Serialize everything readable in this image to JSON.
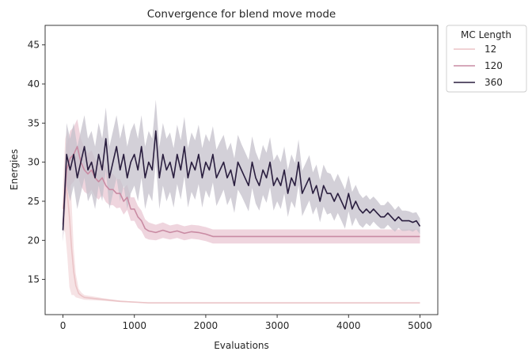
{
  "chart_data": {
    "type": "line",
    "title": "Convergence for blend move mode",
    "xlabel": "Evaluations",
    "ylabel": "Energies",
    "xlim": [
      -250,
      5250
    ],
    "ylim": [
      10.5,
      47.5
    ],
    "xticks": [
      0,
      1000,
      2000,
      3000,
      4000,
      5000
    ],
    "yticks": [
      15,
      20,
      25,
      30,
      35,
      40,
      45
    ],
    "grid": false,
    "legend": {
      "title": "MC Length",
      "placement": "outside-top-right"
    },
    "series": [
      {
        "name": "12",
        "color": "#ebc4c7",
        "band_color": "#f3dadc",
        "x": [
          0,
          30,
          60,
          90,
          120,
          150,
          180,
          220,
          260,
          300,
          400,
          500,
          600,
          800,
          1000,
          1200,
          1500,
          2000,
          3000,
          4000,
          5000
        ],
        "y": [
          24,
          27,
          26,
          23,
          19,
          16,
          14.2,
          13.2,
          12.9,
          12.7,
          12.6,
          12.5,
          12.4,
          12.2,
          12.1,
          12.0,
          12.0,
          12.0,
          12.0,
          12.0,
          12.0
        ],
        "band": [
          2.5,
          6,
          8,
          9,
          6,
          3,
          1.5,
          0.6,
          0.4,
          0.3,
          0.25,
          0.2,
          0.15,
          0.1,
          0.05,
          0.05,
          0.05,
          0.05,
          0.05,
          0.05,
          0.05
        ]
      },
      {
        "name": "120",
        "color": "#c98ba3",
        "band_color": "#e9c7d3",
        "x": [
          0,
          50,
          100,
          150,
          200,
          250,
          300,
          350,
          400,
          450,
          500,
          550,
          600,
          650,
          700,
          750,
          800,
          850,
          900,
          950,
          1000,
          1050,
          1100,
          1150,
          1200,
          1300,
          1400,
          1500,
          1600,
          1700,
          1800,
          1900,
          2000,
          2100,
          2500,
          3000,
          4000,
          5000
        ],
        "y": [
          22,
          29,
          30.5,
          31,
          32,
          30,
          29,
          28.5,
          29,
          28,
          27.5,
          28,
          27,
          26.5,
          26.5,
          26,
          26,
          25,
          25.5,
          24,
          24,
          23,
          22.5,
          21.5,
          21.2,
          21.0,
          21.3,
          21.0,
          21.2,
          20.9,
          21.1,
          21.0,
          20.8,
          20.5,
          20.5,
          20.5,
          20.5,
          20.5
        ],
        "band": [
          2,
          3,
          3.5,
          3.5,
          3.5,
          3,
          2.8,
          2.6,
          2.5,
          2.4,
          2.3,
          2.2,
          2.1,
          2.0,
          2.0,
          1.9,
          1.8,
          1.7,
          1.6,
          1.5,
          1.5,
          1.4,
          1.3,
          1.2,
          1.1,
          1.0,
          1.0,
          0.9,
          0.9,
          0.9,
          0.9,
          0.9,
          0.9,
          0.9,
          0.9,
          0.9,
          0.9,
          0.9
        ]
      },
      {
        "name": "360",
        "color": "#2a1e3f",
        "band_color": "#c4c0cb",
        "x": [
          0,
          50,
          100,
          150,
          200,
          250,
          300,
          350,
          400,
          450,
          500,
          550,
          600,
          650,
          700,
          750,
          800,
          850,
          900,
          950,
          1000,
          1050,
          1100,
          1150,
          1200,
          1250,
          1300,
          1350,
          1400,
          1450,
          1500,
          1550,
          1600,
          1650,
          1700,
          1750,
          1800,
          1850,
          1900,
          1950,
          2000,
          2050,
          2100,
          2150,
          2200,
          2250,
          2300,
          2350,
          2400,
          2450,
          2500,
          2550,
          2600,
          2650,
          2700,
          2750,
          2800,
          2850,
          2900,
          2950,
          3000,
          3050,
          3100,
          3150,
          3200,
          3250,
          3300,
          3350,
          3400,
          3450,
          3500,
          3550,
          3600,
          3650,
          3700,
          3750,
          3800,
          3850,
          3900,
          3950,
          4000,
          4050,
          4100,
          4150,
          4200,
          4250,
          4300,
          4350,
          4400,
          4450,
          4500,
          4550,
          4600,
          4650,
          4700,
          4750,
          4800,
          4850,
          4900,
          4950,
          5000
        ],
        "y": [
          21.3,
          31,
          29,
          31,
          28,
          30,
          32,
          29,
          30,
          28,
          31,
          29,
          33,
          28,
          30,
          32,
          29,
          31,
          28,
          30,
          31,
          29,
          32,
          28,
          30,
          29,
          34,
          28,
          31,
          29,
          30,
          28,
          31,
          29,
          32,
          28,
          30,
          29,
          31,
          28,
          30,
          29,
          31,
          28,
          29,
          30,
          28,
          29,
          27,
          30,
          29,
          28,
          27,
          30,
          28,
          27,
          29,
          28,
          30,
          27,
          28,
          27,
          29,
          26,
          28,
          27,
          30,
          26,
          27,
          28,
          26,
          27,
          25,
          27,
          26,
          26,
          25,
          26,
          25,
          24,
          26,
          24,
          25,
          24,
          23.5,
          24,
          23.5,
          24,
          23.5,
          23,
          23,
          23.5,
          23,
          22.5,
          23,
          22.5,
          22.5,
          22.5,
          22.3,
          22.5,
          21.8
        ],
        "band": [
          1.5,
          4,
          4,
          4,
          4,
          4,
          4,
          4,
          4,
          4,
          4,
          4,
          4,
          4,
          4,
          4,
          4,
          4,
          4,
          4,
          4,
          4,
          4,
          4,
          4,
          4,
          4,
          4,
          4,
          4,
          3.8,
          3.8,
          3.8,
          3.8,
          3.8,
          3.8,
          3.8,
          3.8,
          3.8,
          3.8,
          3.6,
          3.6,
          3.6,
          3.6,
          3.6,
          3.5,
          3.5,
          3.5,
          3.5,
          3.5,
          3.3,
          3.3,
          3.3,
          3.3,
          3.3,
          3.2,
          3.2,
          3.2,
          3.2,
          3.2,
          3.0,
          3.0,
          3.0,
          3.0,
          3.0,
          2.9,
          2.9,
          2.9,
          2.9,
          2.9,
          2.7,
          2.7,
          2.7,
          2.7,
          2.7,
          2.5,
          2.5,
          2.5,
          2.5,
          2.5,
          2.3,
          2.2,
          2.1,
          2.0,
          1.9,
          1.8,
          1.7,
          1.6,
          1.6,
          1.5,
          1.5,
          1.5,
          1.5,
          1.4,
          1.4,
          1.3,
          1.3,
          1.2,
          1.2,
          1.1,
          1.0
        ]
      }
    ]
  }
}
